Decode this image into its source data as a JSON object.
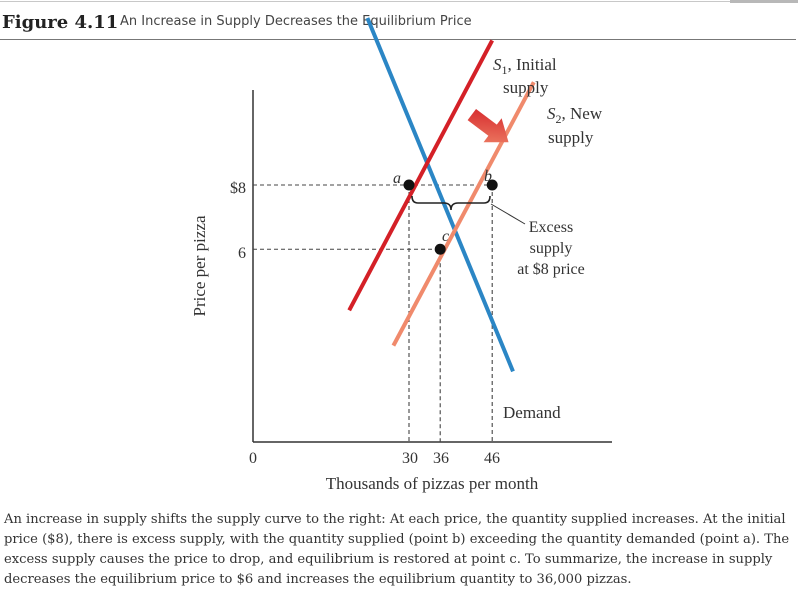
{
  "figure": {
    "number": "Figure 4.11",
    "title": "An Increase in Supply Decreases the Equilibrium Price"
  },
  "chart_data": {
    "type": "line",
    "xlabel": "Thousands of pizzas per month",
    "ylabel": "Price per pizza",
    "x_ticks": [
      {
        "value": 0,
        "label": "0"
      },
      {
        "value": 30,
        "label": "30"
      },
      {
        "value": 36,
        "label": "36"
      },
      {
        "value": 46,
        "label": "46"
      }
    ],
    "y_ticks": [
      {
        "value": 8,
        "label": "$8"
      },
      {
        "value": 6,
        "label": "6"
      }
    ],
    "series": [
      {
        "key": "demand",
        "name": "Demand",
        "color": "#2b86c5",
        "points": [
          [
            22,
            13.2
          ],
          [
            50,
            2.2
          ]
        ]
      },
      {
        "key": "s1",
        "name_main": "S",
        "name_sub": "1",
        "name_rest": ", Initial",
        "name_line2": "supply",
        "color": "#d42027",
        "points": [
          [
            18.5,
            4.1
          ],
          [
            46,
            12.5
          ]
        ]
      },
      {
        "key": "s2",
        "name_main": "S",
        "name_sub": "2",
        "name_rest": ", New",
        "name_line2": "supply",
        "color": "#f08a6c",
        "points": [
          [
            27,
            3.0
          ],
          [
            54,
            11.2
          ]
        ]
      }
    ],
    "points": [
      {
        "label": "a",
        "x": 30,
        "y": 8
      },
      {
        "label": "b",
        "x": 46,
        "y": 8
      },
      {
        "label": "c",
        "x": 36,
        "y": 6
      }
    ],
    "annotations": {
      "excess_supply": [
        "Excess",
        "supply",
        "at $8 price"
      ],
      "shift_arrow_color": "#d42027"
    }
  },
  "caption": "An increase in supply shifts the supply curve to the right: At each price, the quantity supplied increases. At the initial price ($8), there is excess supply, with the quantity supplied (point b) exceeding the quantity demanded (point a). The excess supply causes the price to drop, and equilibrium is restored at point c. To summarize, the increase in supply decreases the equilibrium price to $6 and increases the equilibrium quantity to 36,000 pizzas."
}
